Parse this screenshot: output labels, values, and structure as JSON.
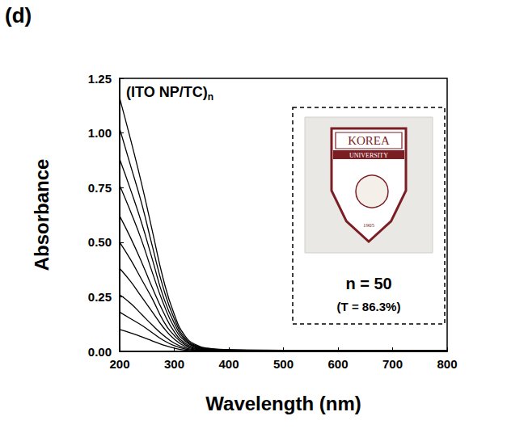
{
  "chart_data": {
    "type": "line",
    "panel_label": "(d)",
    "title": "(ITO NP/TC)",
    "title_subscript": "n",
    "x_label": "Wavelength (nm)",
    "y_label": "Absorbance",
    "x": [
      200,
      220,
      240,
      260,
      280,
      300,
      320,
      340,
      360,
      400,
      500,
      600,
      700,
      800
    ],
    "series": [
      {
        "color": "#000000",
        "values": [
          1.16,
          0.97,
          0.77,
          0.55,
          0.33,
          0.17,
          0.07,
          0.03,
          0.015,
          0.008,
          0.005,
          0.004,
          0.003,
          0.003
        ]
      },
      {
        "color": "#000000",
        "values": [
          1.02,
          0.85,
          0.68,
          0.48,
          0.29,
          0.15,
          0.06,
          0.026,
          0.013,
          0.007,
          0.005,
          0.004,
          0.003,
          0.003
        ]
      },
      {
        "color": "#000000",
        "values": [
          0.88,
          0.74,
          0.59,
          0.42,
          0.25,
          0.13,
          0.053,
          0.023,
          0.011,
          0.006,
          0.004,
          0.003,
          0.003,
          0.002
        ]
      },
      {
        "color": "#000000",
        "values": [
          0.76,
          0.64,
          0.51,
          0.36,
          0.22,
          0.11,
          0.046,
          0.02,
          0.01,
          0.005,
          0.004,
          0.003,
          0.002,
          0.002
        ]
      },
      {
        "color": "#000000",
        "values": [
          0.62,
          0.52,
          0.41,
          0.29,
          0.18,
          0.09,
          0.037,
          0.016,
          0.008,
          0.004,
          0.003,
          0.002,
          0.002,
          0.002
        ]
      },
      {
        "color": "#000000",
        "values": [
          0.5,
          0.42,
          0.33,
          0.24,
          0.14,
          0.073,
          0.03,
          0.013,
          0.007,
          0.004,
          0.003,
          0.002,
          0.002,
          0.001
        ]
      },
      {
        "color": "#000000",
        "values": [
          0.38,
          0.32,
          0.25,
          0.18,
          0.11,
          0.056,
          0.023,
          0.01,
          0.005,
          0.003,
          0.002,
          0.002,
          0.001,
          0.001
        ]
      },
      {
        "color": "#000000",
        "values": [
          0.26,
          0.22,
          0.17,
          0.12,
          0.074,
          0.038,
          0.016,
          0.007,
          0.004,
          0.002,
          0.002,
          0.001,
          0.001,
          0.001
        ]
      },
      {
        "color": "#000000",
        "values": [
          0.18,
          0.15,
          0.12,
          0.085,
          0.051,
          0.026,
          0.011,
          0.005,
          0.003,
          0.002,
          0.001,
          0.001,
          0.001,
          0.001
        ]
      },
      {
        "color": "#000000",
        "values": [
          0.1,
          0.085,
          0.067,
          0.048,
          0.029,
          0.015,
          0.006,
          0.003,
          0.002,
          0.001,
          0.001,
          0.001,
          0.001,
          0.001
        ]
      }
    ],
    "marker": "none",
    "xlim": [
      200,
      800
    ],
    "xticks": [
      200,
      300,
      400,
      500,
      600,
      700,
      800
    ],
    "ylim": [
      0,
      1.25
    ],
    "yticks": [
      {
        "value": 0,
        "label": "0.00"
      },
      {
        "value": 0.25,
        "label": "0.25"
      },
      {
        "value": 0.5,
        "label": "0.50"
      },
      {
        "value": 0.75,
        "label": "0.75"
      },
      {
        "value": 1,
        "label": "1.00"
      },
      {
        "value": 1.25,
        "label": "1.25"
      }
    ],
    "grid": false,
    "inset": {
      "logo_texts": [
        "KOREA",
        "UNIVERSITY",
        "1905"
      ],
      "label": "n = 50",
      "note": "(T = 86.3%)"
    }
  }
}
